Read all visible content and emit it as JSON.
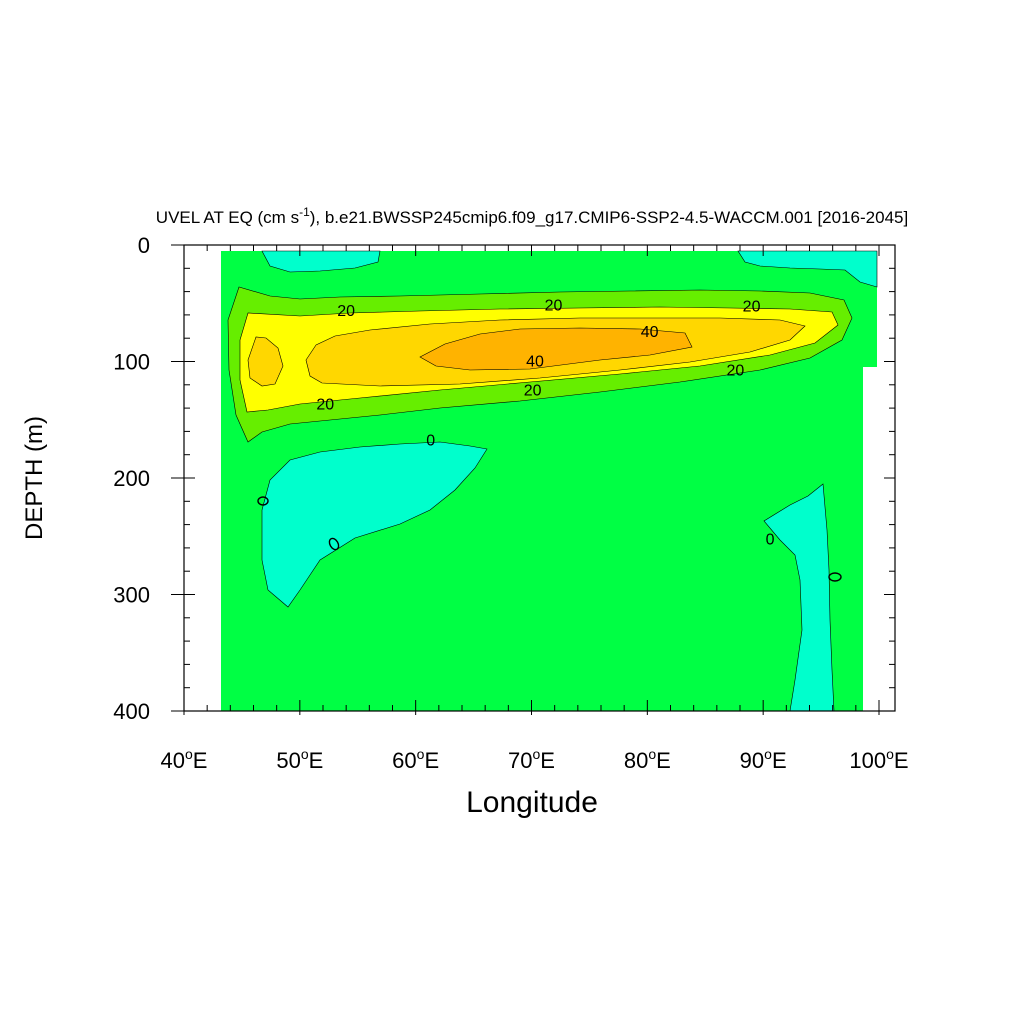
{
  "chart_data": {
    "type": "contour",
    "title": "UVEL AT EQ (cm s",
    "title_superscript": "-1",
    "title_rest": "), b.e21.BWSSP245cmip6.f09_g17.CMIP6-SSP2-4.5-WACCM.001 [2016-2045]",
    "xlabel": "Longitude",
    "ylabel": "DEPTH (m)",
    "xlim": [
      40,
      100
    ],
    "ylim": [
      0,
      400
    ],
    "y_reversed": true,
    "x_ticks": [
      {
        "value": 40,
        "num": "40",
        "sup": "o",
        "suffix": "E"
      },
      {
        "value": 50,
        "num": "50",
        "sup": "o",
        "suffix": "E"
      },
      {
        "value": 60,
        "num": "60",
        "sup": "o",
        "suffix": "E"
      },
      {
        "value": 70,
        "num": "70",
        "sup": "o",
        "suffix": "E"
      },
      {
        "value": 80,
        "num": "80",
        "sup": "o",
        "suffix": "E"
      },
      {
        "value": 90,
        "num": "90",
        "sup": "o",
        "suffix": "E"
      },
      {
        "value": 100,
        "num": "100",
        "sup": "o",
        "suffix": "E"
      }
    ],
    "y_ticks": [
      {
        "value": 0,
        "label": "0"
      },
      {
        "value": 100,
        "label": "100"
      },
      {
        "value": 200,
        "label": "200"
      },
      {
        "value": 300,
        "label": "300"
      },
      {
        "value": 400,
        "label": "400"
      }
    ],
    "fill_levels": [
      {
        "range": "-10 to 0",
        "color": "#00ffcc"
      },
      {
        "range": "0 to 10",
        "color": "#00ff44"
      },
      {
        "range": "10 to 20",
        "color": "#66ee00"
      },
      {
        "range": "20 to 30",
        "color": "#ffff00"
      },
      {
        "range": "30 to 40",
        "color": "#ffd700"
      },
      {
        "range": "40 to 50",
        "color": "#ffb300"
      }
    ],
    "contour_labels": [
      {
        "text": "20",
        "lon": 54,
        "depth": 56
      },
      {
        "text": "20",
        "lon": 71.9,
        "depth": 51
      },
      {
        "text": "20",
        "lon": 89,
        "depth": 52
      },
      {
        "text": "40",
        "lon": 80.2,
        "depth": 74
      },
      {
        "text": "40",
        "lon": 70.3,
        "depth": 99
      },
      {
        "text": "20",
        "lon": 70.1,
        "depth": 124
      },
      {
        "text": "20",
        "lon": 87.6,
        "depth": 107
      },
      {
        "text": "20",
        "lon": 52.2,
        "depth": 136
      },
      {
        "text": "0",
        "lon": 61.3,
        "depth": 167
      },
      {
        "text": "0",
        "lon": 90.6,
        "depth": 252
      }
    ]
  }
}
